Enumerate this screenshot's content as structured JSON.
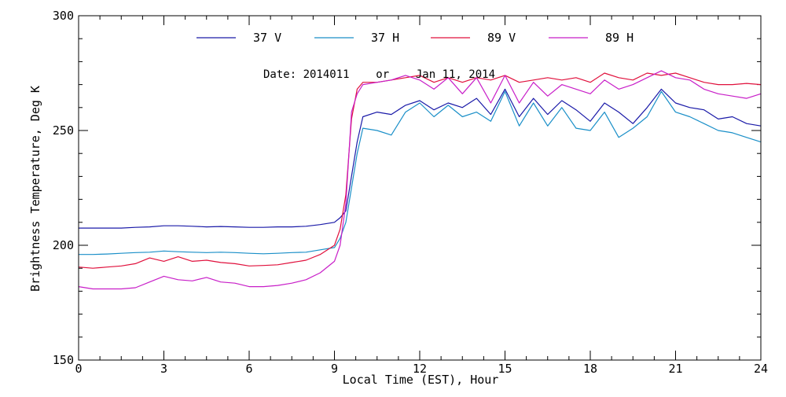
{
  "chart_data": {
    "type": "line",
    "title": "",
    "xlabel": "Local Time (EST), Hour",
    "ylabel": "Brightness Temperature, Deg K",
    "xlim": [
      0,
      24
    ],
    "ylim": [
      150,
      300
    ],
    "x_major_ticks": [
      0,
      3,
      6,
      9,
      12,
      15,
      18,
      21,
      24
    ],
    "x_tick_labels": [
      "0",
      "3",
      "6",
      "9",
      "12",
      "15",
      "18",
      "21",
      "24"
    ],
    "x_minor_step": 0.75,
    "y_major_ticks": [
      150,
      200,
      250,
      300
    ],
    "y_tick_labels": [
      "150",
      "200",
      "250",
      "300"
    ],
    "y_minor_step": 10,
    "grid": false,
    "legend_position": "top",
    "annotation": "Date: 2014011    or    Jan 11, 2014",
    "x": [
      0,
      0.5,
      1,
      1.5,
      2,
      2.5,
      3,
      3.5,
      4,
      4.5,
      5,
      5.5,
      6,
      6.5,
      7,
      7.5,
      8,
      8.5,
      9,
      9.2,
      9.4,
      9.6,
      9.8,
      10,
      10.5,
      11,
      11.5,
      12,
      12.5,
      13,
      13.5,
      14,
      14.5,
      15,
      15.5,
      16,
      16.5,
      17,
      17.5,
      18,
      18.5,
      19,
      19.5,
      20,
      20.5,
      21,
      21.5,
      22,
      22.5,
      23,
      23.5,
      24
    ],
    "series": [
      {
        "name": "37 V",
        "color": "#1a1aa8",
        "values": [
          207.5,
          207.5,
          207.5,
          207.5,
          207.8,
          208,
          208.5,
          208.5,
          208.3,
          208,
          208.2,
          208,
          207.8,
          207.8,
          208,
          208,
          208.3,
          209,
          210,
          212,
          215,
          230,
          245,
          256,
          258,
          257,
          261,
          263,
          259,
          262,
          260,
          264,
          257,
          268,
          256,
          264,
          257,
          263,
          259,
          254,
          262,
          258,
          253,
          260,
          268,
          262,
          260,
          259,
          255,
          256,
          253,
          252
        ]
      },
      {
        "name": "37 H",
        "color": "#1a8fc8",
        "values": [
          196,
          196,
          196.2,
          196.5,
          196.8,
          197,
          197.5,
          197.2,
          197,
          196.8,
          197,
          196.8,
          196.5,
          196.3,
          196.5,
          196.8,
          197,
          198,
          199,
          203,
          210,
          225,
          240,
          251,
          250,
          248,
          258,
          262,
          256,
          261,
          256,
          258,
          254,
          267,
          252,
          262,
          252,
          260,
          251,
          250,
          258,
          247,
          251,
          256,
          267,
          258,
          256,
          253,
          250,
          249,
          247,
          245
        ]
      },
      {
        "name": "89 V",
        "color": "#e0103c",
        "values": [
          190.5,
          190,
          190.5,
          191,
          192,
          194.5,
          193,
          195,
          193,
          193.5,
          192.5,
          192,
          191,
          191.2,
          191.5,
          192.5,
          193.5,
          196,
          200,
          207,
          222,
          255,
          268,
          271,
          271,
          272,
          273,
          274,
          271,
          273,
          271,
          273,
          272,
          274,
          271,
          272,
          273,
          272,
          273,
          271,
          275,
          273,
          272,
          275,
          274,
          275,
          273,
          271,
          270,
          270,
          270.5,
          270
        ]
      },
      {
        "name": "89 H",
        "color": "#c81ec8",
        "values": [
          182,
          181,
          181,
          181,
          181.5,
          184,
          186.5,
          185,
          184.5,
          186,
          184,
          183.5,
          182,
          182,
          182.5,
          183.5,
          185,
          188,
          193,
          200,
          218,
          258,
          266,
          270,
          271,
          272,
          274,
          272,
          268,
          273,
          266,
          273,
          262,
          274,
          262,
          271,
          265,
          270,
          268,
          266,
          272,
          268,
          270,
          273,
          276,
          273,
          272,
          268,
          266,
          265,
          264,
          266
        ]
      }
    ]
  }
}
